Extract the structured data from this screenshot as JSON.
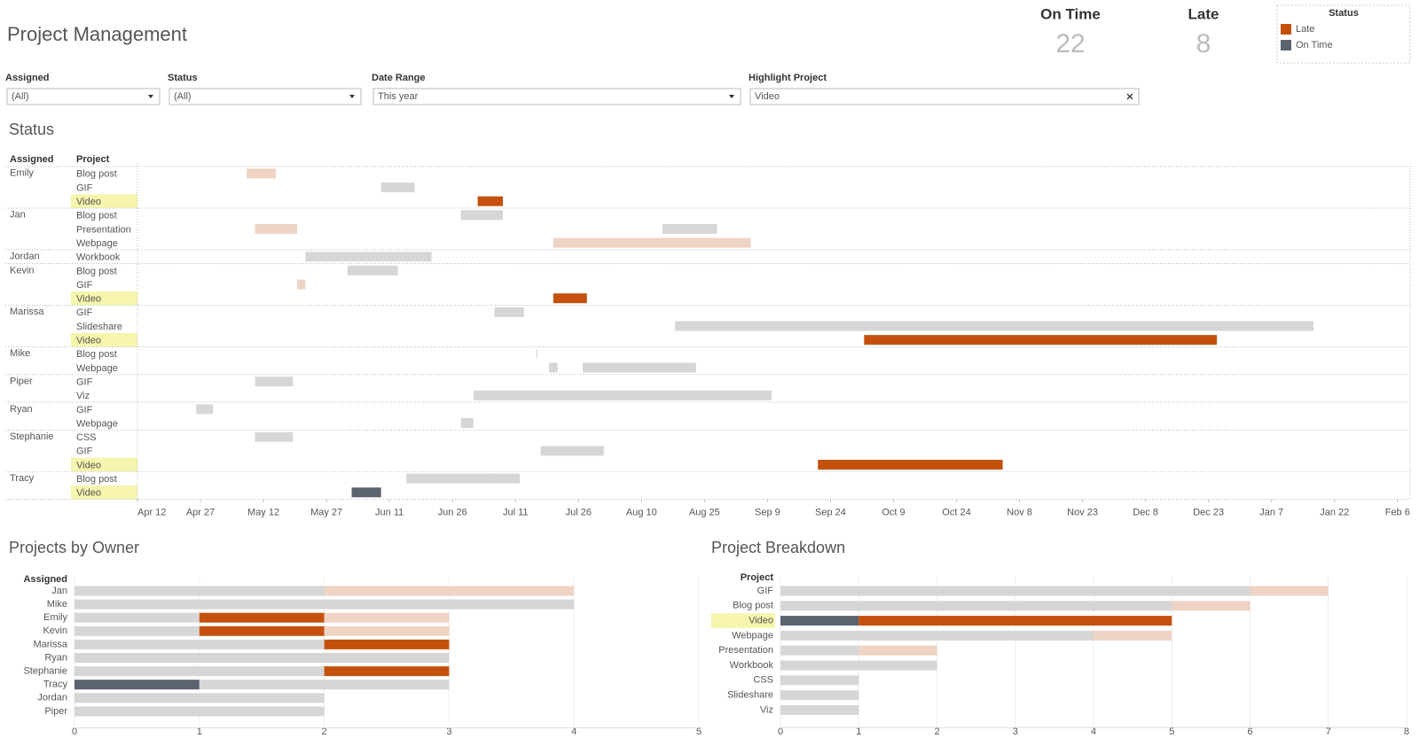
{
  "header": {
    "title": "Project Management"
  },
  "kpis": [
    {
      "label": "On Time",
      "value": 22
    },
    {
      "label": "Late",
      "value": 8
    }
  ],
  "legend": {
    "title": "Status",
    "items": [
      {
        "label": "Late",
        "color": "#c5500d"
      },
      {
        "label": "On Time",
        "color": "#5b6371"
      }
    ]
  },
  "filters": [
    {
      "label": "Assigned",
      "value": "(All)"
    },
    {
      "label": "Status",
      "value": "(All)"
    },
    {
      "label": "Date Range",
      "value": "This year"
    },
    {
      "label": "Highlight Project",
      "value": "Video"
    }
  ],
  "chart_data": [
    {
      "type": "gantt",
      "title": "Status",
      "row_header": "Assigned",
      "sub_header": "Project",
      "xlim": [
        "Apr 12",
        "Feb 9"
      ],
      "xticks": [
        "Apr 12",
        "Apr 27",
        "May 12",
        "May 27",
        "Jun 11",
        "Jun 26",
        "Jul 11",
        "Jul 26",
        "Aug 10",
        "Aug 25",
        "Sep 9",
        "Sep 24",
        "Oct 9",
        "Oct 24",
        "Nov 8",
        "Nov 23",
        "Dec 8",
        "Dec 23",
        "Jan 7",
        "Jan 22",
        "Feb 6"
      ],
      "groups": [
        {
          "assigned": "Emily",
          "rows": [
            {
              "project": "Blog post",
              "bars": [
                {
                  "start": "May 8",
                  "end": "May 15",
                  "color": "#efd3c4"
                }
              ]
            },
            {
              "project": "GIF",
              "bars": [
                {
                  "start": "Jun 9",
                  "end": "Jun 17",
                  "color": "#d6d6d6"
                }
              ]
            },
            {
              "project": "Video",
              "bars": [
                {
                  "start": "Jul 2",
                  "end": "Jul 8",
                  "color": "#c5500d"
                }
              ]
            }
          ]
        },
        {
          "assigned": "Jan",
          "rows": [
            {
              "project": "Blog post",
              "bars": [
                {
                  "start": "Jun 28",
                  "end": "Jul 8",
                  "color": "#d6d6d6"
                }
              ]
            },
            {
              "project": "Presentation",
              "bars": [
                {
                  "start": "May 10",
                  "end": "May 20",
                  "color": "#efd3c4"
                },
                {
                  "start": "Aug 15",
                  "end": "Aug 28",
                  "color": "#d6d6d6"
                }
              ]
            },
            {
              "project": "Webpage",
              "bars": [
                {
                  "start": "Jul 20",
                  "end": "Sep 5",
                  "color": "#efd3c4"
                }
              ]
            }
          ]
        },
        {
          "assigned": "Jordan",
          "rows": [
            {
              "project": "Workbook",
              "bars": [
                {
                  "start": "May 22",
                  "end": "Jun 21",
                  "color": "#d6d6d6"
                }
              ]
            }
          ]
        },
        {
          "assigned": "Kevin",
          "rows": [
            {
              "project": "Blog post",
              "bars": [
                {
                  "start": "Jun 1",
                  "end": "Jun 13",
                  "color": "#d6d6d6"
                }
              ]
            },
            {
              "project": "GIF",
              "bars": [
                {
                  "start": "May 20",
                  "end": "May 22",
                  "color": "#efd3c4"
                }
              ]
            },
            {
              "project": "Video",
              "bars": [
                {
                  "start": "Jul 20",
                  "end": "Jul 28",
                  "color": "#c5500d"
                }
              ]
            }
          ]
        },
        {
          "assigned": "Marissa",
          "rows": [
            {
              "project": "GIF",
              "bars": [
                {
                  "start": "Jul 6",
                  "end": "Jul 13",
                  "color": "#d6d6d6"
                }
              ]
            },
            {
              "project": "Slideshare",
              "bars": [
                {
                  "start": "Aug 18",
                  "end": "Jan 17",
                  "color": "#d6d6d6"
                }
              ]
            },
            {
              "project": "Video",
              "bars": [
                {
                  "start": "Oct 2",
                  "end": "Dec 25",
                  "color": "#c5500d"
                }
              ]
            }
          ]
        },
        {
          "assigned": "Mike",
          "rows": [
            {
              "project": "Blog post",
              "bars": [
                {
                  "start": "Jul 16",
                  "end": "Jul 16",
                  "color": "#d6d6d6"
                }
              ]
            },
            {
              "project": "Webpage",
              "bars": [
                {
                  "start": "Jul 19",
                  "end": "Jul 21",
                  "color": "#d6d6d6"
                },
                {
                  "start": "Jul 27",
                  "end": "Aug 23",
                  "color": "#d6d6d6"
                }
              ]
            }
          ]
        },
        {
          "assigned": "Piper",
          "rows": [
            {
              "project": "GIF",
              "bars": [
                {
                  "start": "May 10",
                  "end": "May 19",
                  "color": "#d6d6d6"
                }
              ]
            },
            {
              "project": "Viz",
              "bars": [
                {
                  "start": "Jul 1",
                  "end": "Sep 10",
                  "color": "#d6d6d6"
                }
              ]
            }
          ]
        },
        {
          "assigned": "Ryan",
          "rows": [
            {
              "project": "GIF",
              "bars": [
                {
                  "start": "Apr 26",
                  "end": "Apr 30",
                  "color": "#d6d6d6"
                }
              ]
            },
            {
              "project": "Webpage",
              "bars": [
                {
                  "start": "Jun 28",
                  "end": "Jul 1",
                  "color": "#d6d6d6"
                }
              ]
            }
          ]
        },
        {
          "assigned": "Stephanie",
          "rows": [
            {
              "project": "CSS",
              "bars": [
                {
                  "start": "May 10",
                  "end": "May 19",
                  "color": "#d6d6d6"
                }
              ]
            },
            {
              "project": "GIF",
              "bars": [
                {
                  "start": "Jul 17",
                  "end": "Aug 1",
                  "color": "#d6d6d6"
                }
              ]
            },
            {
              "project": "Video",
              "bars": [
                {
                  "start": "Sep 21",
                  "end": "Nov 4",
                  "color": "#c5500d"
                }
              ]
            }
          ]
        },
        {
          "assigned": "Tracy",
          "rows": [
            {
              "project": "Blog post",
              "bars": [
                {
                  "start": "Jun 15",
                  "end": "Jul 12",
                  "color": "#d6d6d6"
                }
              ]
            },
            {
              "project": "Video",
              "bars": [
                {
                  "start": "Jun 2",
                  "end": "Jun 9",
                  "color": "#5b6371"
                }
              ]
            }
          ]
        }
      ]
    },
    {
      "type": "hbar",
      "title": "Projects by Owner",
      "y_label": "Assigned",
      "categories": [
        "Jan",
        "Mike",
        "Emily",
        "Kevin",
        "Marissa",
        "Ryan",
        "Stephanie",
        "Tracy",
        "Jordan",
        "Piper"
      ],
      "series": [
        {
          "color": "#5b6371",
          "values": [
            0,
            0,
            0,
            0,
            0,
            0,
            0,
            1,
            0,
            0
          ]
        },
        {
          "color": "#d6d6d6",
          "values": [
            2,
            4,
            1,
            1,
            2,
            3,
            2,
            2,
            2,
            2
          ]
        },
        {
          "color": "#c5500d",
          "values": [
            0,
            0,
            1,
            1,
            1,
            0,
            1,
            0,
            0,
            0
          ]
        },
        {
          "color": "#efd3c4",
          "values": [
            2,
            0,
            1,
            1,
            0,
            0,
            0,
            0,
            0,
            0
          ]
        }
      ],
      "xlim": [
        0,
        5
      ],
      "xticks": [
        0,
        1,
        2,
        3,
        4,
        5
      ],
      "grid": true
    },
    {
      "type": "hbar",
      "title": "Project Breakdown",
      "y_label": "Project",
      "categories": [
        "GIF",
        "Blog post",
        "Video",
        "Webpage",
        "Presentation",
        "Workbook",
        "CSS",
        "Slideshare",
        "Viz"
      ],
      "series": [
        {
          "color": "#5b6371",
          "values": [
            0,
            0,
            1,
            0,
            0,
            0,
            0,
            0,
            0
          ]
        },
        {
          "color": "#d6d6d6",
          "values": [
            6,
            5,
            0,
            4,
            1,
            2,
            1,
            1,
            1
          ]
        },
        {
          "color": "#c5500d",
          "values": [
            0,
            0,
            4,
            0,
            0,
            0,
            0,
            0,
            0
          ]
        },
        {
          "color": "#efd3c4",
          "values": [
            1,
            1,
            0,
            1,
            1,
            0,
            0,
            0,
            0
          ]
        }
      ],
      "xlim": [
        0,
        8
      ],
      "xticks": [
        0,
        1,
        2,
        3,
        4,
        5,
        6,
        7,
        8
      ],
      "grid": true
    }
  ]
}
